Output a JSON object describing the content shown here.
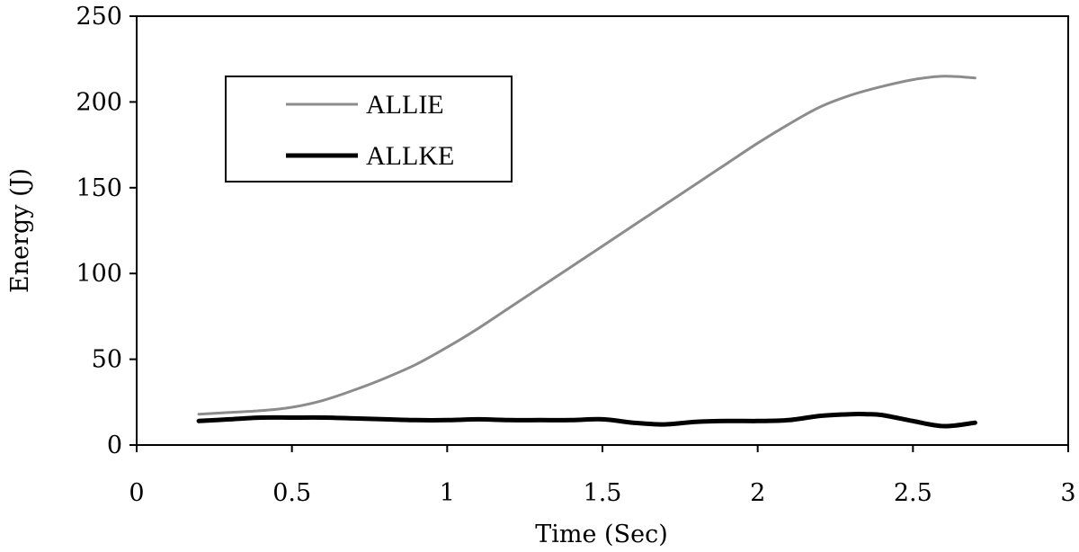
{
  "chart_data": {
    "type": "line",
    "title": "",
    "xlabel": "Time (Sec)",
    "ylabel": "Energy (J)",
    "xlim": [
      0,
      3
    ],
    "ylim": [
      0,
      250
    ],
    "x_ticks": [
      "0",
      "0.5",
      "1",
      "1.5",
      "2",
      "2.5",
      "3"
    ],
    "y_ticks": [
      "0",
      "50",
      "100",
      "150",
      "200",
      "250"
    ],
    "grid": false,
    "legend_position": "top-left",
    "series": [
      {
        "name": "ALLIE",
        "color": "#8c8c8c",
        "x": [
          0.2,
          0.3,
          0.4,
          0.5,
          0.6,
          0.7,
          0.8,
          0.9,
          1.0,
          1.1,
          1.2,
          1.3,
          1.4,
          1.5,
          1.6,
          1.7,
          1.8,
          1.9,
          2.0,
          2.1,
          2.2,
          2.3,
          2.4,
          2.5,
          2.6,
          2.7
        ],
        "y": [
          18,
          19,
          20,
          22,
          26,
          32,
          39,
          47,
          57,
          68,
          80,
          92,
          104,
          116,
          128,
          140,
          152,
          164,
          176,
          187,
          197,
          204,
          209,
          213,
          215,
          214
        ]
      },
      {
        "name": "ALLKE",
        "color": "#000000",
        "x": [
          0.2,
          0.3,
          0.4,
          0.5,
          0.6,
          0.7,
          0.8,
          0.9,
          1.0,
          1.1,
          1.2,
          1.3,
          1.4,
          1.5,
          1.6,
          1.7,
          1.8,
          1.9,
          2.0,
          2.1,
          2.2,
          2.3,
          2.35,
          2.4,
          2.5,
          2.6,
          2.7
        ],
        "y": [
          14,
          15,
          16,
          16,
          16,
          15.5,
          15,
          14.5,
          14.5,
          15,
          14.5,
          14.5,
          14.5,
          15,
          13,
          12,
          13.5,
          14,
          14,
          14.5,
          17,
          18,
          18,
          17.5,
          14,
          11,
          13
        ]
      }
    ]
  }
}
